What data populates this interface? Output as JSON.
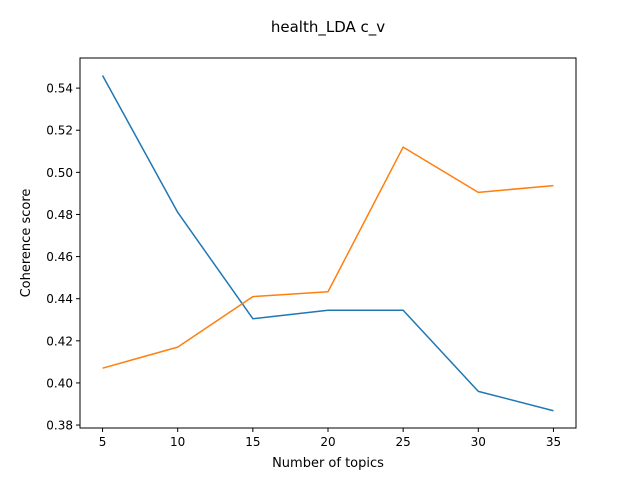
{
  "chart_data": {
    "type": "line",
    "title": "health_LDA c_v",
    "xlabel": "Number of topics",
    "ylabel": "Coherence score",
    "x": [
      5,
      10,
      15,
      20,
      25,
      30,
      35
    ],
    "xticks": [
      "5",
      "10",
      "15",
      "20",
      "25",
      "30",
      "35"
    ],
    "yticks": [
      "0.38",
      "0.40",
      "0.42",
      "0.44",
      "0.46",
      "0.48",
      "0.50",
      "0.52",
      "0.54"
    ],
    "xlim": [
      3.5,
      36.5
    ],
    "ylim": [
      0.3786,
      0.5543
    ],
    "grid": false,
    "series": [
      {
        "color": "#1f77b4",
        "values": [
          0.546,
          0.481,
          0.4305,
          0.4345,
          0.4345,
          0.396,
          0.3868
        ]
      },
      {
        "color": "#ff7f0e",
        "values": [
          0.407,
          0.417,
          0.441,
          0.4433,
          0.512,
          0.4905,
          0.4937
        ]
      }
    ]
  }
}
